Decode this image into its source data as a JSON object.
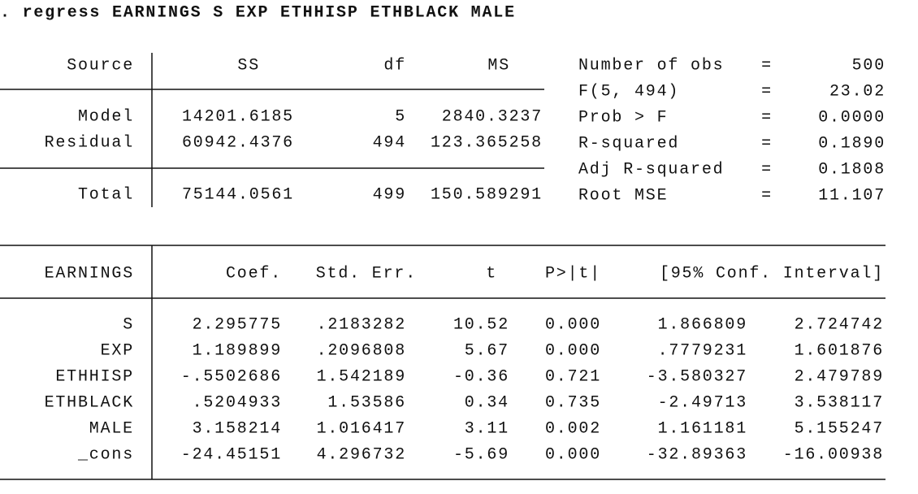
{
  "command": ". regress EARNINGS S EXP ETHHISP ETHBLACK MALE",
  "anova": {
    "headers": [
      "Source",
      "SS",
      "df",
      "MS"
    ],
    "rows": [
      [
        "Model",
        "14201.6185",
        "5",
        "2840.3237"
      ],
      [
        "Residual",
        "60942.4376",
        "494",
        "123.365258"
      ],
      [
        "Total",
        "75144.0561",
        "499",
        "150.589291"
      ]
    ]
  },
  "stats": [
    [
      "Number of obs",
      "=",
      "500"
    ],
    [
      "F(5, 494)",
      "=",
      "23.02"
    ],
    [
      "Prob > F",
      "=",
      "0.0000"
    ],
    [
      "R-squared",
      "=",
      "0.1890"
    ],
    [
      "Adj R-squared",
      "=",
      "0.1808"
    ],
    [
      "Root MSE",
      "=",
      "11.107"
    ]
  ],
  "coefficients": {
    "headers": [
      "EARNINGS",
      "Coef.",
      "Std. Err.",
      "t",
      "P>|t|",
      "[95% Conf. Interval]"
    ],
    "rows": [
      [
        "S",
        "2.295775",
        ".2183282",
        "10.52",
        "0.000",
        "1.866809",
        "2.724742"
      ],
      [
        "EXP",
        "1.189899",
        ".2096808",
        "5.67",
        "0.000",
        ".7779231",
        "1.601876"
      ],
      [
        "ETHHISP",
        "-.5502686",
        "1.542189",
        "-0.36",
        "0.721",
        "-3.580327",
        "2.479789"
      ],
      [
        "ETHBLACK",
        ".5204933",
        "1.53586",
        "0.34",
        "0.735",
        "-2.49713",
        "3.538117"
      ],
      [
        "MALE",
        "3.158214",
        "1.016417",
        "3.11",
        "0.002",
        "1.161181",
        "5.155247"
      ],
      [
        "_cons",
        "-24.45151",
        "4.296732",
        "-5.69",
        "0.000",
        "-32.89363",
        "-16.00938"
      ]
    ]
  }
}
